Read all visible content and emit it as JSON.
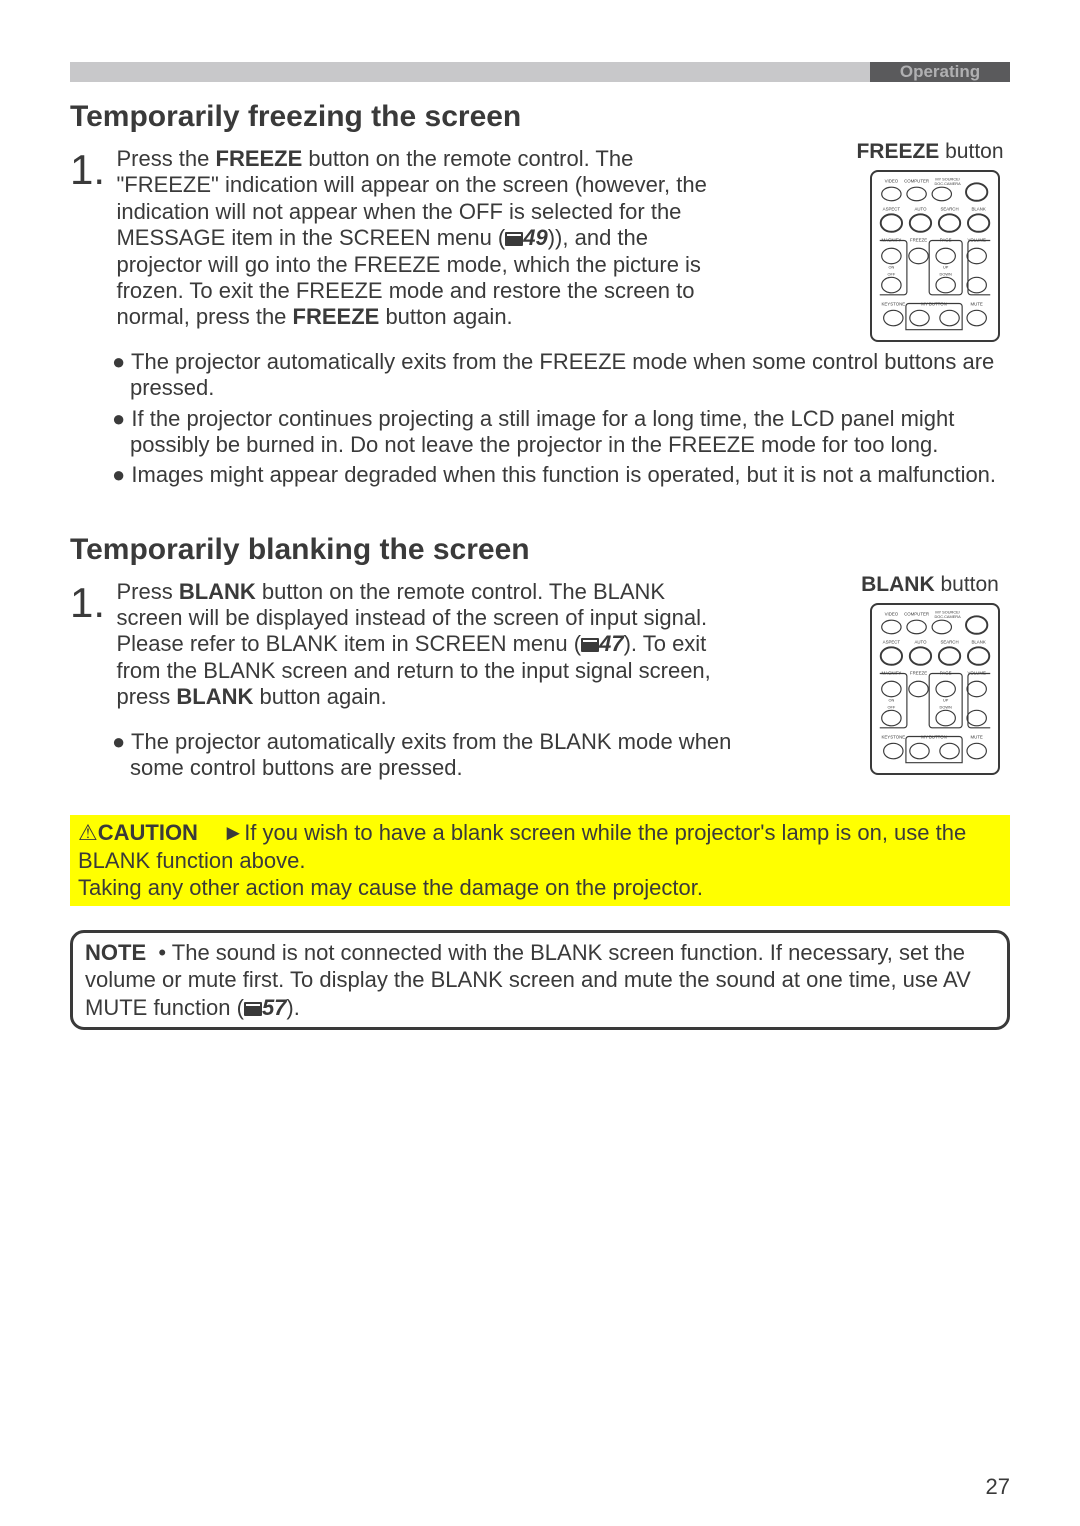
{
  "header": {
    "operating": "Operating"
  },
  "section1": {
    "title": "Temporarily freezing the screen",
    "step_num": "1.",
    "step_pre": "Press the ",
    "step_bold1": "FREEZE",
    "step_mid": " button on the remote control.\nThe \"FREEZE\" indication will appear on the screen (however, the indication will not appear when the OFF is selected for the MESSAGE item in the SCREEN menu (",
    "ref1": "49",
    "step_post1": ")), and the projector will go into the FREEZE mode, which the picture is frozen.\nTo exit the FREEZE mode and restore the screen to normal, press the ",
    "step_bold2": "FREEZE",
    "step_end": " button again.",
    "bullets": [
      "The projector automatically exits from the FREEZE mode when some control buttons are pressed.",
      "If the projector continues projecting a still image for a long time, the LCD panel might possibly be burned in. Do not leave the projector in the FREEZE mode for too long.",
      "Images might appear degraded when this function is operated, but it is not a malfunction."
    ],
    "remote_label_bold": "FREEZE",
    "remote_label_rest": " button"
  },
  "section2": {
    "title": "Temporarily blanking the screen",
    "step_num": "1.",
    "step_pre": "Press ",
    "step_bold1": "BLANK",
    "step_mid": " button on the remote control.\nThe BLANK screen will be displayed instead of the screen of input signal. Please refer to BLANK item in SCREEN menu (",
    "ref1": "47",
    "step_post1": ").\nTo exit from the BLANK screen and return to the input signal screen, press ",
    "step_bold2": "BLANK",
    "step_end": " button again.",
    "bullets": [
      "The projector automatically exits from the BLANK mode when some control buttons are pressed."
    ],
    "remote_label_bold": "BLANK",
    "remote_label_rest": " button"
  },
  "caution": {
    "label": "CAUTION",
    "arrow": "►",
    "text1": "If you wish to have a blank screen while the projector's lamp is on, use the BLANK function above.",
    "text2": "Taking any other action may cause the damage on the projector."
  },
  "note": {
    "label": "NOTE",
    "dot": "•",
    "text1": "The sound is not connected with the BLANK screen function. If necessary, set the volume or mute first. To display the BLANK screen and mute the sound at one time, use AV MUTE function (",
    "ref": "57",
    "text2": ")."
  },
  "page_number": "27",
  "remote_svg": {
    "btn_labels_row1": [
      "VIDEO",
      "COMPUTER",
      "MY SOURCE/\nDOC.CAMERA",
      ""
    ],
    "btn_labels_row2": [
      "ASPECT",
      "AUTO",
      "SEARCH",
      "BLANK"
    ],
    "btn_labels_row3": [
      "MAGNIFY",
      "FREEZE",
      "PAGE",
      "VOLUME"
    ],
    "btn_labels_row3b": [
      "ON",
      "",
      "UP",
      ""
    ],
    "btn_labels_row4": [
      "OFF",
      "",
      "DOWN",
      ""
    ],
    "btn_labels_row5": [
      "KEYSTONE",
      "MY BUTTON",
      "MUTE"
    ],
    "colors": {
      "stroke": "#3a3a3a",
      "fill": "#ffffff"
    }
  }
}
